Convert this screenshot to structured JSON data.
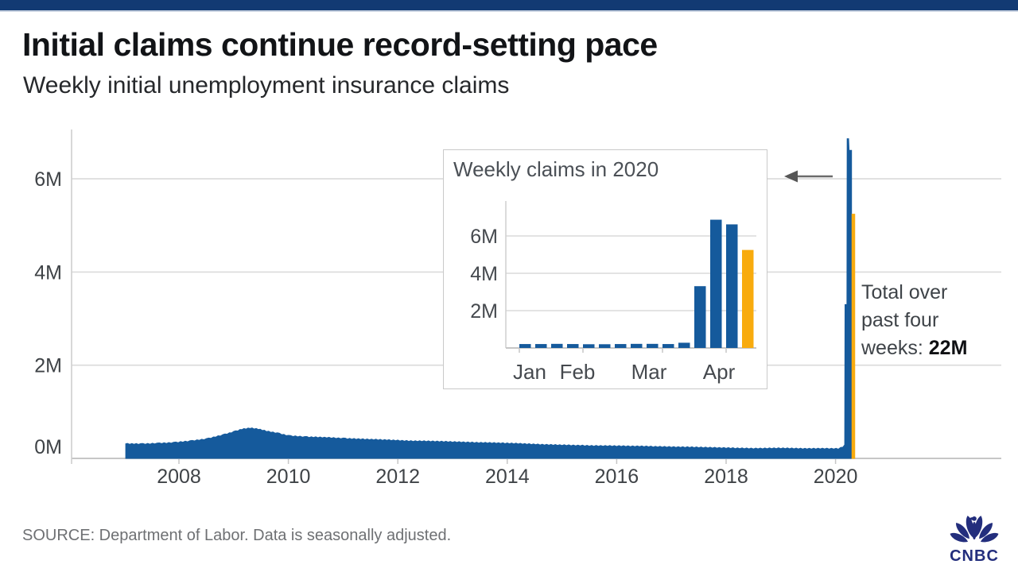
{
  "brand": {
    "top_bar_color": "#123a73",
    "logo_text": "CNBC",
    "logo_color": "#232e7d"
  },
  "header": {
    "title": "Initial claims continue record-setting pace",
    "subtitle": "Weekly initial unemployment insurance claims"
  },
  "chart_data": [
    {
      "type": "area",
      "name": "weekly-initial-claims-2007-2020",
      "color": "#155a9c",
      "highlight_color": "#f8ab0e",
      "grid": "horizontal",
      "legend": "none",
      "xlim": [
        2007,
        2020.4
      ],
      "ylim": [
        0,
        7
      ],
      "x_ticks": [
        {
          "label": "2008",
          "year": 2008
        },
        {
          "label": "2010",
          "year": 2010
        },
        {
          "label": "2012",
          "year": 2012
        },
        {
          "label": "2014",
          "year": 2014
        },
        {
          "label": "2016",
          "year": 2016
        },
        {
          "label": "2018",
          "year": 2018
        },
        {
          "label": "2020",
          "year": 2020
        }
      ],
      "y_ticks": [
        {
          "label": "0M",
          "value": 0
        },
        {
          "label": "2M",
          "value": 2
        },
        {
          "label": "4M",
          "value": 4
        },
        {
          "label": "6M",
          "value": 6
        }
      ],
      "series": [
        {
          "name": "Weekly initial claims (millions)",
          "points": [
            [
              2007.02,
              0.318
            ],
            [
              2007.3,
              0.312
            ],
            [
              2007.6,
              0.325
            ],
            [
              2007.9,
              0.342
            ],
            [
              2008.2,
              0.375
            ],
            [
              2008.5,
              0.42
            ],
            [
              2008.8,
              0.505
            ],
            [
              2009.0,
              0.575
            ],
            [
              2009.15,
              0.63
            ],
            [
              2009.3,
              0.655
            ],
            [
              2009.45,
              0.635
            ],
            [
              2009.6,
              0.59
            ],
            [
              2009.8,
              0.545
            ],
            [
              2010.0,
              0.49
            ],
            [
              2010.3,
              0.465
            ],
            [
              2010.7,
              0.452
            ],
            [
              2011.0,
              0.432
            ],
            [
              2011.4,
              0.415
            ],
            [
              2011.8,
              0.4
            ],
            [
              2012.2,
              0.378
            ],
            [
              2012.6,
              0.372
            ],
            [
              2013.0,
              0.36
            ],
            [
              2013.4,
              0.345
            ],
            [
              2013.8,
              0.335
            ],
            [
              2014.2,
              0.322
            ],
            [
              2014.6,
              0.302
            ],
            [
              2015.0,
              0.29
            ],
            [
              2015.5,
              0.276
            ],
            [
              2016.0,
              0.27
            ],
            [
              2016.5,
              0.262
            ],
            [
              2017.0,
              0.25
            ],
            [
              2017.5,
              0.242
            ],
            [
              2018.0,
              0.228
            ],
            [
              2018.5,
              0.216
            ],
            [
              2019.0,
              0.224
            ],
            [
              2019.4,
              0.214
            ],
            [
              2019.8,
              0.216
            ],
            [
              2020.05,
              0.211
            ],
            [
              2020.13,
              0.252
            ],
            [
              2020.16,
              0.282
            ],
            [
              2020.165,
              3.31
            ],
            [
              2020.2,
              3.31
            ],
            [
              2020.205,
              6.87
            ],
            [
              2020.245,
              6.87
            ],
            [
              2020.255,
              6.62
            ],
            [
              2020.3,
              6.62
            ]
          ]
        }
      ],
      "highlight": {
        "value": 5.25
      }
    },
    {
      "type": "bar",
      "name": "weekly-claims-2020-inset",
      "title": "Weekly claims in 2020",
      "color": "#155a9c",
      "highlight_color": "#f8ab0e",
      "highlight_last": true,
      "grid": "horizontal",
      "ylim": [
        0,
        7.2
      ],
      "y_ticks": [
        {
          "label": "2M",
          "value": 2
        },
        {
          "label": "4M",
          "value": 4
        },
        {
          "label": "6M",
          "value": 6
        }
      ],
      "x_ticks": [
        {
          "label": "Jan",
          "week": 0.3
        },
        {
          "label": "Feb",
          "week": 3.3
        },
        {
          "label": "Mar",
          "week": 7.8
        },
        {
          "label": "Apr",
          "week": 12.2
        }
      ],
      "values": [
        0.21,
        0.21,
        0.22,
        0.21,
        0.2,
        0.2,
        0.21,
        0.22,
        0.22,
        0.21,
        0.28,
        3.31,
        6.87,
        6.62,
        5.25
      ]
    }
  ],
  "annotation": {
    "line1": "Total over",
    "line2": "past four",
    "line3_prefix": "weeks: ",
    "value": "22M",
    "arrow_icon": "arrow-left-icon"
  },
  "footer": {
    "source": "SOURCE: Department of Labor. Data is seasonally adjusted."
  }
}
